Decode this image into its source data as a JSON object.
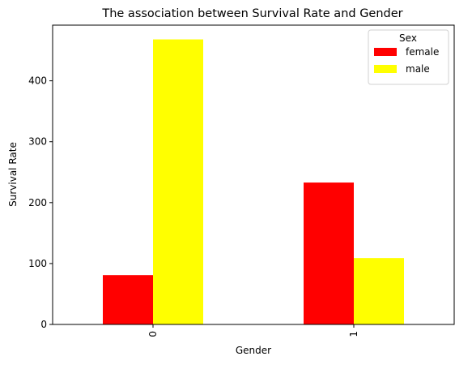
{
  "chart_data": {
    "type": "bar",
    "title": "The association between Survival Rate and Gender",
    "xlabel": "Gender",
    "ylabel": "Survival Rate",
    "categories": [
      "0",
      "1"
    ],
    "series": [
      {
        "name": "female",
        "values": [
          81,
          233
        ],
        "color": "#ff0000"
      },
      {
        "name": "male",
        "values": [
          468,
          109
        ],
        "color": "#ffff00"
      }
    ],
    "ylim": [
      0,
      491.4
    ],
    "yticks": [
      0,
      100,
      200,
      300,
      400
    ],
    "legend": {
      "title": "Sex",
      "placement": "top-right"
    },
    "grid": false
  }
}
